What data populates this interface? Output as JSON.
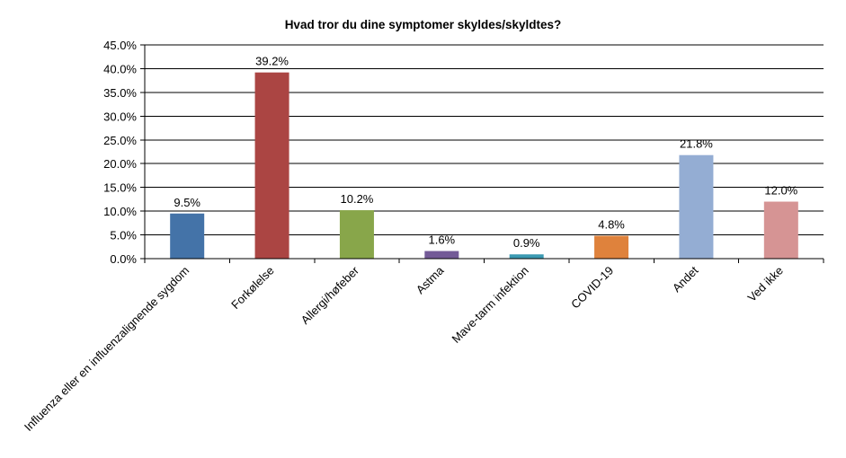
{
  "chart_data": {
    "type": "bar",
    "title": "Hvad tror du dine symptomer skyldes/skyldtes?",
    "xlabel": "",
    "ylabel": "",
    "ylim": [
      0,
      45
    ],
    "yticks": [
      "0.0%",
      "5.0%",
      "10.0%",
      "15.0%",
      "20.0%",
      "25.0%",
      "30.0%",
      "35.0%",
      "40.0%",
      "45.0%"
    ],
    "grid": true,
    "categories": [
      "Influenza eller en influenzalignende sygdom",
      "Forkølelse",
      "Allergi/høfeber",
      "Astma",
      "Mave-tarm infektion",
      "COVID-19",
      "Andet",
      "Ved ikke"
    ],
    "values": [
      9.5,
      39.2,
      10.2,
      1.6,
      0.9,
      4.8,
      21.8,
      12.0
    ],
    "data_labels": [
      "9.5%",
      "39.2%",
      "10.2%",
      "1.6%",
      "0.9%",
      "4.8%",
      "21.8%",
      "12.0%"
    ],
    "colors": [
      "#4473a8",
      "#ab4543",
      "#88a64a",
      "#735a97",
      "#3b9ab2",
      "#df823c",
      "#94add3",
      "#d69494"
    ]
  }
}
